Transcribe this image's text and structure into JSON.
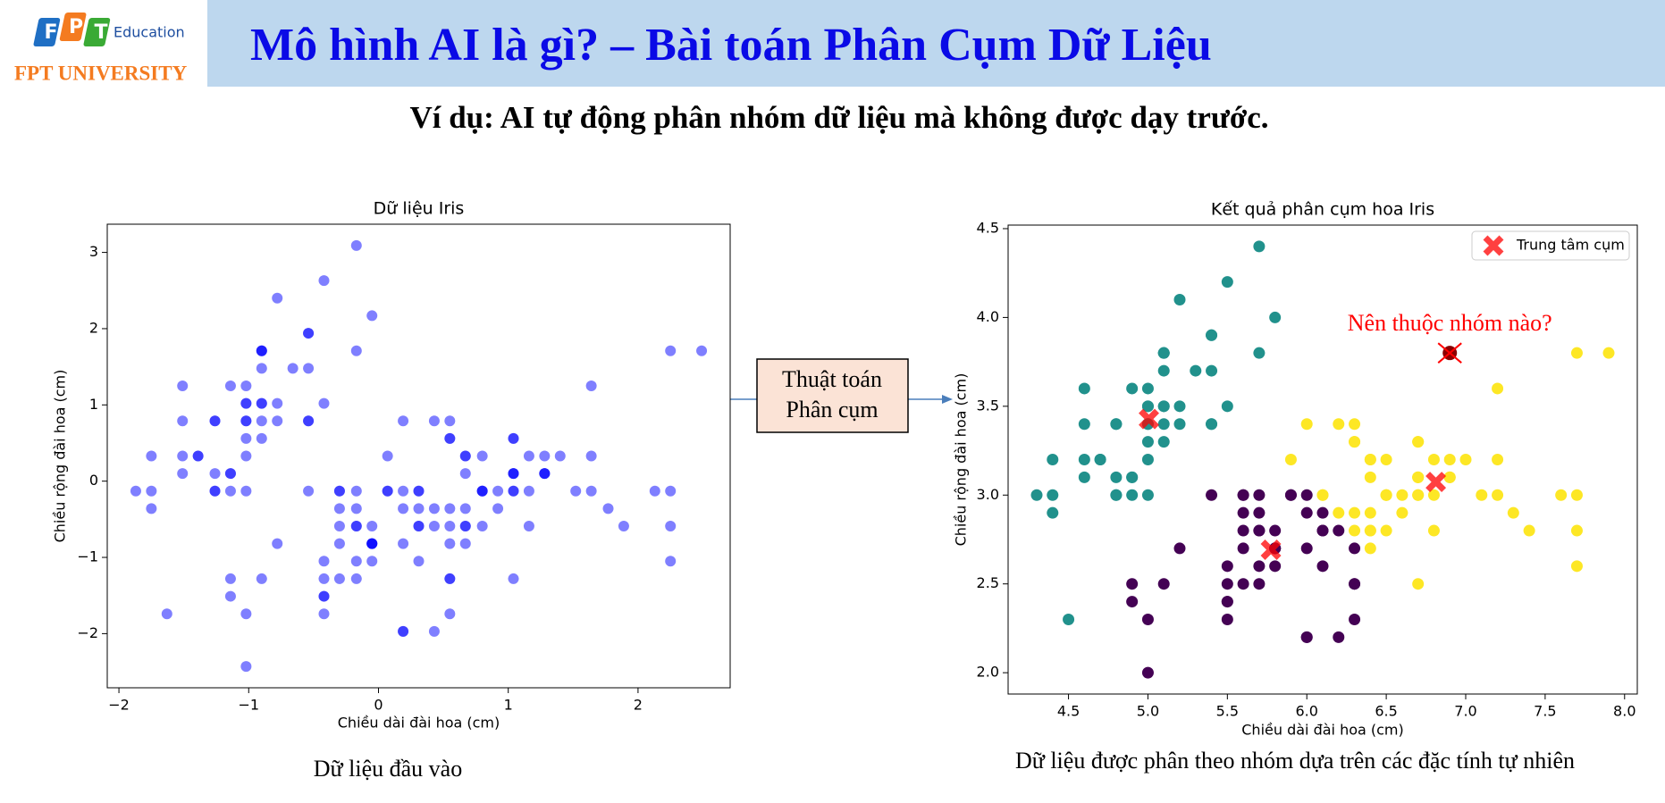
{
  "logo": {
    "letters": [
      "F",
      "P",
      "T"
    ],
    "sub": "Education",
    "university": "FPT UNIVERSITY"
  },
  "header": {
    "title": "Mô hình AI là gì? – Bài toán Phân Cụm Dữ Liệu"
  },
  "subtitle": "Ví dụ: AI tự động phân nhóm dữ liệu mà không được dạy trước.",
  "flow_box": {
    "lines": [
      "Thuật toán",
      "Phân cụm"
    ]
  },
  "captions": [
    "Dữ liệu đầu vào",
    "Dữ liệu được phân theo nhóm dựa trên các đặc tính tự nhiên"
  ],
  "chart_data": [
    {
      "type": "scatter",
      "title": "Dữ liệu Iris",
      "xlabel": "Chiều dài đài hoa (cm)",
      "ylabel": "Chiều rộng đài hoa (cm)",
      "color": "#0000ff",
      "opacity": 0.5,
      "x": [
        -0.9,
        -1.14,
        -1.39,
        -1.51,
        -1.02,
        -0.54,
        -1.51,
        -1.02,
        -1.75,
        -1.14,
        -0.54,
        -1.26,
        -1.26,
        -1.87,
        -0.05,
        -0.17,
        -0.54,
        -0.9,
        -0.17,
        -0.9,
        -0.54,
        -0.9,
        -1.51,
        -0.9,
        -1.26,
        -1.02,
        -1.02,
        -0.78,
        -0.78,
        -1.39,
        -1.26,
        -0.54,
        -0.78,
        -0.42,
        -1.14,
        -1.02,
        -0.42,
        -1.14,
        -1.75,
        -0.9,
        -1.02,
        -1.63,
        -1.75,
        -1.02,
        -0.9,
        -1.26,
        -0.9,
        -1.51,
        -0.66,
        -1.02,
        1.4,
        0.67,
        1.28,
        -0.42,
        0.8,
        -0.17,
        0.55,
        -1.14,
        0.92,
        -0.78,
        -1.02,
        0.07,
        0.19,
        0.31,
        -0.3,
        1.04,
        -0.3,
        -0.05,
        0.43,
        -0.3,
        0.07,
        0.31,
        0.55,
        0.31,
        0.67,
        0.92,
        1.16,
        1.04,
        0.19,
        -0.17,
        -0.42,
        -0.42,
        -0.05,
        0.19,
        -0.54,
        0.19,
        1.04,
        0.55,
        -0.3,
        -0.42,
        -0.42,
        0.31,
        -0.05,
        -1.02,
        -0.3,
        -0.17,
        -0.17,
        0.43,
        -0.9,
        -0.17,
        0.55,
        -0.05,
        1.52,
        0.55,
        0.8,
        2.13,
        -1.14,
        1.77,
        1.04,
        1.64,
        0.8,
        0.67,
        1.16,
        -0.17,
        -0.05,
        0.67,
        0.8,
        2.25,
        2.25,
        0.19,
        1.28,
        -0.3,
        2.25,
        0.55,
        1.04,
        1.64,
        0.43,
        0.31,
        0.67,
        1.64,
        1.89,
        2.49,
        0.67,
        0.55,
        0.31,
        2.25,
        0.55,
        0.67,
        0.19,
        1.28,
        1.04,
        1.28,
        -0.05,
        1.16,
        1.04,
        1.04,
        0.55,
        0.8,
        0.43,
        0.07
      ],
      "values": [
        1.02,
        -0.13,
        0.33,
        0.1,
        1.25,
        1.94,
        0.79,
        0.79,
        -0.36,
        0.1,
        1.48,
        0.79,
        -0.13,
        -0.13,
        2.17,
        3.09,
        1.94,
        1.02,
        1.71,
        1.71,
        0.79,
        1.48,
        1.25,
        0.56,
        0.79,
        -0.13,
        0.79,
        1.02,
        0.79,
        0.33,
        0.1,
        0.79,
        2.4,
        2.63,
        0.1,
        0.33,
        1.02,
        1.25,
        -0.13,
        0.79,
        1.02,
        -1.74,
        0.33,
        1.02,
        1.71,
        -0.13,
        1.71,
        0.33,
        1.48,
        0.56,
        0.33,
        0.33,
        0.1,
        -1.74,
        -0.59,
        -0.59,
        0.56,
        -1.51,
        -0.36,
        -0.82,
        -2.43,
        -0.13,
        -1.97,
        -0.36,
        -0.36,
        0.1,
        -0.13,
        -0.82,
        -1.97,
        -1.28,
        0.33,
        -0.59,
        -1.28,
        -0.59,
        -0.36,
        -0.13,
        -0.59,
        -0.13,
        -0.36,
        -1.05,
        -1.51,
        -1.51,
        -0.82,
        -0.82,
        -0.13,
        0.79,
        0.1,
        -1.74,
        -0.13,
        -1.28,
        -1.05,
        -0.13,
        -1.05,
        -1.74,
        -0.82,
        -0.13,
        -0.36,
        -0.36,
        -1.28,
        -0.59,
        0.56,
        -0.82,
        -0.13,
        -0.36,
        -0.13,
        -0.13,
        -1.28,
        -0.36,
        -1.28,
        1.25,
        0.33,
        -0.82,
        -0.13,
        -1.28,
        -0.59,
        0.33,
        -0.13,
        1.71,
        -1.05,
        -1.97,
        0.33,
        -0.59,
        -0.59,
        -0.82,
        0.56,
        0.33,
        -0.59,
        -0.13,
        -0.59,
        -0.13,
        -0.59,
        1.71,
        -0.59,
        -0.59,
        -1.05,
        -0.13,
        0.79,
        0.1,
        -0.13,
        0.1,
        0.1,
        0.1,
        -0.82,
        0.33,
        0.56,
        -0.13,
        -1.28,
        -0.13,
        0.79,
        -0.13
      ],
      "xlim": [
        -2.09,
        2.71
      ],
      "ylim": [
        -2.71,
        3.37
      ],
      "xticks": [
        {
          "value": -2,
          "label": "−2"
        },
        {
          "value": -1,
          "label": "−1"
        },
        0,
        1,
        2
      ],
      "yticks": [
        {
          "value": -2,
          "label": "−2"
        },
        {
          "value": -1,
          "label": "−1"
        },
        0,
        1,
        2,
        3
      ]
    },
    {
      "type": "scatter",
      "title": "Kết quả phân cụm hoa Iris",
      "xlabel": "Chiều dài đài hoa (cm)",
      "ylabel": "Chiều rộng đài hoa (cm)",
      "xlim": [
        4.12,
        8.08
      ],
      "ylim": [
        1.88,
        4.52
      ],
      "xticks": [
        4.5,
        {
          "value": 5,
          "label": "5.0"
        },
        5.5,
        {
          "value": 6,
          "label": "6.0"
        },
        6.5,
        {
          "value": 7,
          "label": "7.0"
        },
        7.5,
        {
          "value": 8,
          "label": "8.0"
        }
      ],
      "yticks": [
        {
          "value": 2,
          "label": "2.0"
        },
        2.5,
        {
          "value": 3,
          "label": "3.0"
        },
        3.5,
        {
          "value": 4,
          "label": "4.0"
        },
        4.5
      ],
      "legend": "upper right",
      "series": [
        {
          "color": "#21918c",
          "x": [
            5.1,
            4.9,
            4.7,
            4.6,
            5.0,
            5.4,
            4.6,
            5.0,
            4.4,
            4.9,
            5.4,
            4.8,
            4.8,
            4.3,
            5.8,
            5.7,
            5.4,
            5.1,
            5.7,
            5.1,
            5.4,
            5.1,
            4.6,
            5.1,
            4.8,
            5.0,
            5.0,
            5.2,
            5.2,
            4.7,
            4.8,
            5.4,
            5.2,
            5.5,
            4.9,
            5.0,
            5.5,
            4.9,
            4.4,
            5.1,
            5.0,
            4.5,
            4.4,
            5.0,
            5.1,
            4.8,
            5.1,
            4.6,
            5.3,
            5.0
          ],
          "values": [
            3.5,
            3.0,
            3.2,
            3.1,
            3.6,
            3.9,
            3.4,
            3.4,
            2.9,
            3.1,
            3.7,
            3.4,
            3.0,
            3.0,
            4.0,
            4.4,
            3.9,
            3.5,
            3.8,
            3.8,
            3.4,
            3.7,
            3.6,
            3.3,
            3.4,
            3.0,
            3.4,
            3.5,
            3.4,
            3.2,
            3.1,
            3.4,
            4.1,
            4.2,
            3.1,
            3.2,
            3.5,
            3.6,
            3.0,
            3.4,
            3.5,
            2.3,
            3.2,
            3.5,
            3.8,
            3.0,
            3.8,
            3.2,
            3.7,
            3.3
          ]
        },
        {
          "color": "#440154",
          "x": [
            5.5,
            5.7,
            4.9,
            5.2,
            5.0,
            5.9,
            6.0,
            6.1,
            5.6,
            5.6,
            5.8,
            6.2,
            5.6,
            6.1,
            6.3,
            6.1,
            6.0,
            5.7,
            5.5,
            5.5,
            5.8,
            6.0,
            5.4,
            6.3,
            5.6,
            5.5,
            5.5,
            5.8,
            5.0,
            5.6,
            5.7,
            5.7,
            5.1,
            5.7,
            5.8,
            4.9,
            5.7,
            5.8,
            6.0,
            5.6,
            6.3,
            6.2,
            6.1,
            6.0,
            5.8,
            6.3,
            5.9
          ],
          "values": [
            2.3,
            2.8,
            2.4,
            2.7,
            2.0,
            3.0,
            2.2,
            2.9,
            2.9,
            3.0,
            2.7,
            2.2,
            2.5,
            2.8,
            2.5,
            2.8,
            2.9,
            2.6,
            2.4,
            2.4,
            2.7,
            2.7,
            3.0,
            2.3,
            3.0,
            2.5,
            2.6,
            2.6,
            2.3,
            2.7,
            3.0,
            2.9,
            2.5,
            2.8,
            2.7,
            2.5,
            2.5,
            2.8,
            2.2,
            2.8,
            2.7,
            2.8,
            2.6,
            3.0,
            2.7,
            2.5,
            3.0
          ]
        },
        {
          "color": "#fde725",
          "x": [
            7.0,
            6.4,
            6.9,
            6.5,
            6.3,
            6.6,
            6.7,
            5.9,
            6.4,
            6.6,
            6.8,
            6.7,
            6.0,
            6.7,
            6.1,
            6.2,
            6.3,
            7.1,
            6.3,
            6.5,
            7.6,
            7.3,
            6.7,
            7.2,
            6.5,
            6.4,
            6.8,
            6.4,
            6.5,
            7.7,
            7.7,
            6.9,
            7.7,
            6.7,
            7.2,
            6.1,
            6.4,
            7.2,
            7.4,
            7.9,
            6.4,
            6.3,
            7.7,
            6.3,
            6.4,
            6.9,
            6.7,
            6.9,
            6.8,
            6.7,
            6.7,
            6.5,
            6.2
          ],
          "values": [
            3.2,
            3.2,
            3.1,
            2.8,
            3.3,
            2.9,
            3.1,
            3.2,
            2.9,
            3.0,
            2.8,
            3.0,
            3.4,
            3.1,
            3.0,
            2.9,
            3.3,
            3.0,
            2.9,
            3.0,
            3.0,
            2.9,
            2.5,
            3.6,
            3.2,
            2.7,
            3.0,
            3.2,
            3.0,
            3.8,
            2.6,
            3.2,
            2.8,
            3.3,
            3.2,
            3.0,
            2.8,
            3.0,
            2.8,
            3.8,
            2.8,
            2.8,
            3.0,
            3.4,
            3.1,
            3.1,
            3.1,
            3.1,
            3.2,
            3.3,
            3.0,
            3.0,
            3.4
          ]
        },
        {
          "name": "Trung tâm cụm",
          "color": "#ff0000",
          "opacity": 0.75,
          "marker": "X",
          "x": [
            5.006,
            5.774,
            6.812
          ],
          "values": [
            3.428,
            2.692,
            3.074
          ]
        }
      ],
      "annotation": {
        "text": "Nên thuộc nhóm nào?",
        "x": 6.9,
        "y": 3.8,
        "color": "#ff0000",
        "point_color": "#8b0000"
      }
    }
  ]
}
